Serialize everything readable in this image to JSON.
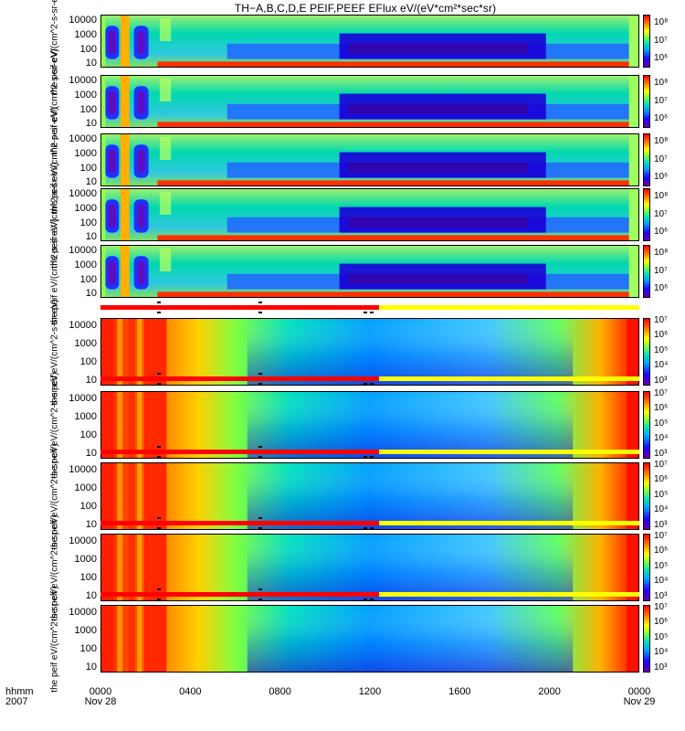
{
  "title": "TH−A,B,C,D,E PEIF,PEEF EFlux eV/(eV*cm²*sec*sr)",
  "x_axis": {
    "label_line1": "hhmm",
    "label_line2": "2007",
    "ticks": [
      {
        "t": 0,
        "line1": "0000",
        "line2": "Nov 28"
      },
      {
        "t": 4,
        "line1": "0400",
        "line2": ""
      },
      {
        "t": 8,
        "line1": "0800",
        "line2": ""
      },
      {
        "t": 12,
        "line1": "1200",
        "line2": ""
      },
      {
        "t": 16,
        "line1": "1600",
        "line2": ""
      },
      {
        "t": 20,
        "line1": "2000",
        "line2": ""
      },
      {
        "t": 24,
        "line1": "0000",
        "line2": "Nov 29"
      }
    ]
  },
  "colors": {
    "spectrogram_scale": [
      "#6600aa",
      "#2200ff",
      "#00a0ff",
      "#00e0c0",
      "#80ff40",
      "#ffff00",
      "#ff8000",
      "#ff0000"
    ],
    "mode_bar_fast": "#ff0000",
    "mode_bar_slow": "#ffff00",
    "frame": "#000000"
  },
  "chart_data": {
    "type": "heatmap",
    "x_range_hours": [
      0,
      24
    ],
    "y_scale": "log",
    "panels": [
      {
        "species": "ion",
        "ylabel": "the peif eV/(cm^2-s-sr-eV)",
        "yticks": [
          "10000",
          "1000",
          "100",
          "10"
        ],
        "ylim": [
          5,
          25000
        ],
        "cbar_ticks": [
          "10⁸",
          "10⁷",
          "10⁶"
        ],
        "clim": [
          300000,
          300000000
        ]
      },
      {
        "species": "ion",
        "ylabel": "the peif eV/(cm^2-s-sr-eV)",
        "yticks": [
          "10000",
          "1000",
          "100",
          "10"
        ],
        "ylim": [
          5,
          25000
        ],
        "cbar_ticks": [
          "10⁸",
          "10⁷",
          "10⁶"
        ],
        "clim": [
          300000,
          300000000
        ]
      },
      {
        "species": "ion",
        "ylabel": "the peif eV/(cm^2-s-sr-eV)",
        "yticks": [
          "10000",
          "1000",
          "100",
          "10"
        ],
        "ylim": [
          5,
          25000
        ],
        "cbar_ticks": [
          "10⁸",
          "10⁷",
          "10⁶"
        ],
        "clim": [
          300000,
          300000000
        ]
      },
      {
        "species": "ion",
        "ylabel": "the peif eV/(cm^2-s-sr-eV)",
        "yticks": [
          "10000",
          "1000",
          "100",
          "10"
        ],
        "ylim": [
          5,
          25000
        ],
        "cbar_ticks": [
          "10⁸",
          "10⁷",
          "10⁶"
        ],
        "clim": [
          300000,
          300000000
        ]
      },
      {
        "species": "ion",
        "ylabel": "the peif eV/(cm^2-s-sr-eV)",
        "yticks": [
          "10000",
          "1000",
          "100",
          "10"
        ],
        "ylim": [
          5,
          25000
        ],
        "cbar_ticks": [
          "10⁸",
          "10⁷",
          "10⁶"
        ],
        "clim": [
          300000,
          300000000
        ]
      },
      {
        "species": "electron",
        "ylabel": "the peif eV/(cm^2-s-sr-eV)",
        "yticks": [
          "10000",
          "1000",
          "100",
          "10"
        ],
        "ylim": [
          5,
          25000
        ],
        "cbar_ticks": [
          "10⁷",
          "10⁶",
          "10⁵",
          "10⁴",
          "10³"
        ],
        "clim": [
          500,
          15000000
        ]
      },
      {
        "species": "electron",
        "ylabel": "the peif eV/(cm^2-s-sr-eV)",
        "yticks": [
          "10000",
          "1000",
          "100",
          "10"
        ],
        "ylim": [
          5,
          25000
        ],
        "cbar_ticks": [
          "10⁷",
          "10⁶",
          "10⁵",
          "10⁴",
          "10³"
        ],
        "clim": [
          500,
          15000000
        ]
      },
      {
        "species": "electron",
        "ylabel": "the peif eV/(cm^2-s-sr-eV)",
        "yticks": [
          "10000",
          "1000",
          "100",
          "10"
        ],
        "ylim": [
          5,
          25000
        ],
        "cbar_ticks": [
          "10⁷",
          "10⁶",
          "10⁵",
          "10⁴",
          "10³"
        ],
        "clim": [
          500,
          15000000
        ]
      },
      {
        "species": "electron",
        "ylabel": "the peif eV/(cm^2-s-sr-eV)",
        "yticks": [
          "10000",
          "1000",
          "100",
          "10"
        ],
        "ylim": [
          5,
          25000
        ],
        "cbar_ticks": [
          "10⁷",
          "10⁶",
          "10⁵",
          "10⁴",
          "10³"
        ],
        "clim": [
          500,
          15000000
        ]
      },
      {
        "species": "electron",
        "ylabel": "the peif eV/(cm^2-s-sr-eV)",
        "yticks": [
          "10000",
          "1000",
          "100",
          "10"
        ],
        "ylim": [
          5,
          25000
        ],
        "cbar_ticks": [
          "10⁷",
          "10⁶",
          "10⁵",
          "10⁴",
          "10³"
        ],
        "clim": [
          500,
          15000000
        ]
      }
    ],
    "mode_bars": [
      {
        "fast_hours": [
          0,
          12.4
        ],
        "slow_hours": [
          12.4,
          24
        ],
        "marks_hours": [
          2.6,
          7.1,
          11.8,
          12.1
        ]
      },
      {
        "fast_hours": [
          0,
          12.4
        ],
        "slow_hours": [
          12.4,
          24
        ],
        "marks_hours": [
          2.6,
          7.1,
          11.8,
          12.1
        ]
      },
      {
        "fast_hours": [
          0,
          12.4
        ],
        "slow_hours": [
          12.4,
          24
        ],
        "marks_hours": [
          2.6,
          7.1,
          11.8,
          12.1
        ]
      },
      {
        "fast_hours": [
          0,
          12.4
        ],
        "slow_hours": [
          12.4,
          24
        ],
        "marks_hours": [
          2.6,
          7.1,
          11.8,
          12.1
        ]
      },
      {
        "fast_hours": [
          0,
          12.4
        ],
        "slow_hours": [
          12.4,
          24
        ],
        "marks_hours": [
          2.6,
          7.1,
          11.8,
          12.1
        ]
      }
    ]
  }
}
